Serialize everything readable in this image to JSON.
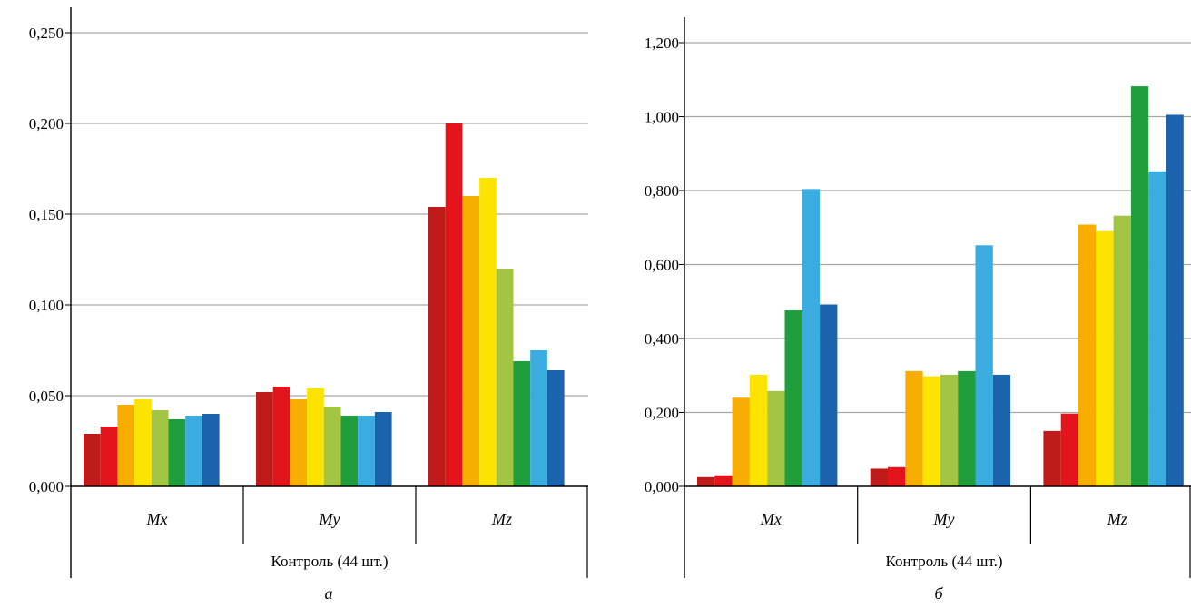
{
  "chart_data": [
    {
      "type": "bar",
      "panel_label": "а",
      "group_label": "Контроль (44 шт.)",
      "categories": [
        "Mx",
        "My",
        "Mz"
      ],
      "ylim": [
        0,
        0.25
      ],
      "yticks": [
        "0,000",
        "0,050",
        "0,100",
        "0,150",
        "0,200",
        "0,250"
      ],
      "ytick_values": [
        0,
        0.05,
        0.1,
        0.15,
        0.2,
        0.25
      ],
      "grid": true,
      "series": [
        {
          "color": "#c01b1b",
          "values": [
            0.029,
            0.052,
            0.154
          ]
        },
        {
          "color": "#e4141c",
          "values": [
            0.033,
            0.055,
            0.2
          ]
        },
        {
          "color": "#f7ae00",
          "values": [
            0.045,
            0.048,
            0.16
          ]
        },
        {
          "color": "#fde300",
          "values": [
            0.048,
            0.054,
            0.17
          ]
        },
        {
          "color": "#a3c544",
          "values": [
            0.042,
            0.044,
            0.12
          ]
        },
        {
          "color": "#1f9e3b",
          "values": [
            0.037,
            0.039,
            0.069
          ]
        },
        {
          "color": "#3aace0",
          "values": [
            0.039,
            0.039,
            0.075
          ]
        },
        {
          "color": "#1c63ad",
          "values": [
            0.04,
            0.041,
            0.064
          ]
        }
      ]
    },
    {
      "type": "bar",
      "panel_label": "б",
      "group_label": "Контроль (44 шт.)",
      "categories": [
        "Mx",
        "My",
        "Mz"
      ],
      "ylim": [
        0,
        1.2
      ],
      "yticks": [
        "0,000",
        "0,200",
        "0,400",
        "0,600",
        "0,800",
        "1,000",
        "1,200"
      ],
      "ytick_values": [
        0,
        0.2,
        0.4,
        0.6,
        0.8,
        1.0,
        1.2
      ],
      "grid": true,
      "series": [
        {
          "color": "#c01b1b",
          "values": [
            0.025,
            0.048,
            0.15
          ]
        },
        {
          "color": "#e4141c",
          "values": [
            0.03,
            0.052,
            0.197
          ]
        },
        {
          "color": "#f7ae00",
          "values": [
            0.24,
            0.312,
            0.708
          ]
        },
        {
          "color": "#fde300",
          "values": [
            0.302,
            0.298,
            0.69
          ]
        },
        {
          "color": "#a3c544",
          "values": [
            0.258,
            0.302,
            0.732
          ]
        },
        {
          "color": "#1f9e3b",
          "values": [
            0.476,
            0.312,
            1.082
          ]
        },
        {
          "color": "#3aace0",
          "values": [
            0.804,
            0.652,
            0.852
          ]
        },
        {
          "color": "#1c63ad",
          "values": [
            0.492,
            0.302,
            1.005
          ]
        }
      ]
    }
  ]
}
